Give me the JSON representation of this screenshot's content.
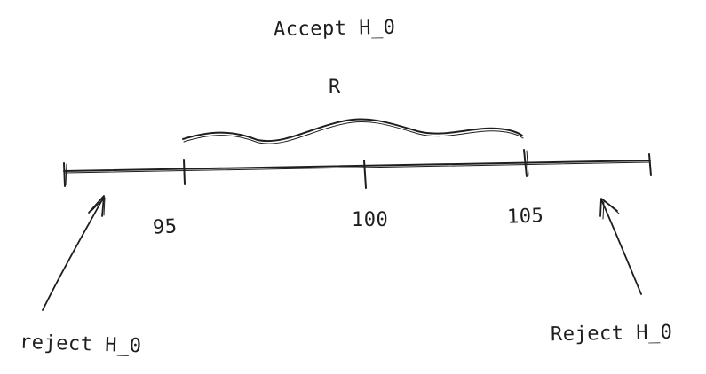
{
  "labels": {
    "accept": "Accept H_0",
    "range": "R",
    "tick_95": "95",
    "tick_100": "100",
    "tick_105": "105",
    "reject_left": "reject H_0",
    "reject_right": "Reject H_0"
  },
  "colors": {
    "ink": "#1e1e1e",
    "background": "#ffffff"
  }
}
